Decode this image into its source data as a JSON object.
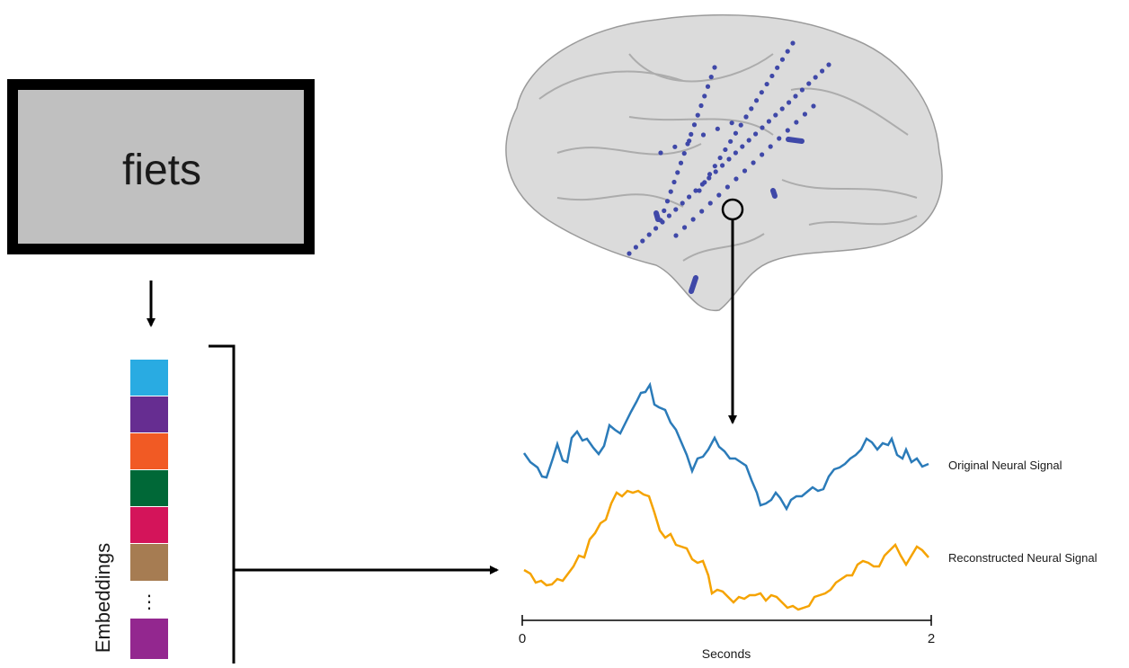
{
  "stimulus": {
    "word": "fiets"
  },
  "embeddings": {
    "label": "Embeddings",
    "ellipsis": "⋮"
  },
  "signals": {
    "original": "Original Neural Signal",
    "reconstructed": "Reconstructed Neural Signal"
  },
  "time_axis": {
    "label": "Seconds",
    "start": "0",
    "end": "2"
  }
}
